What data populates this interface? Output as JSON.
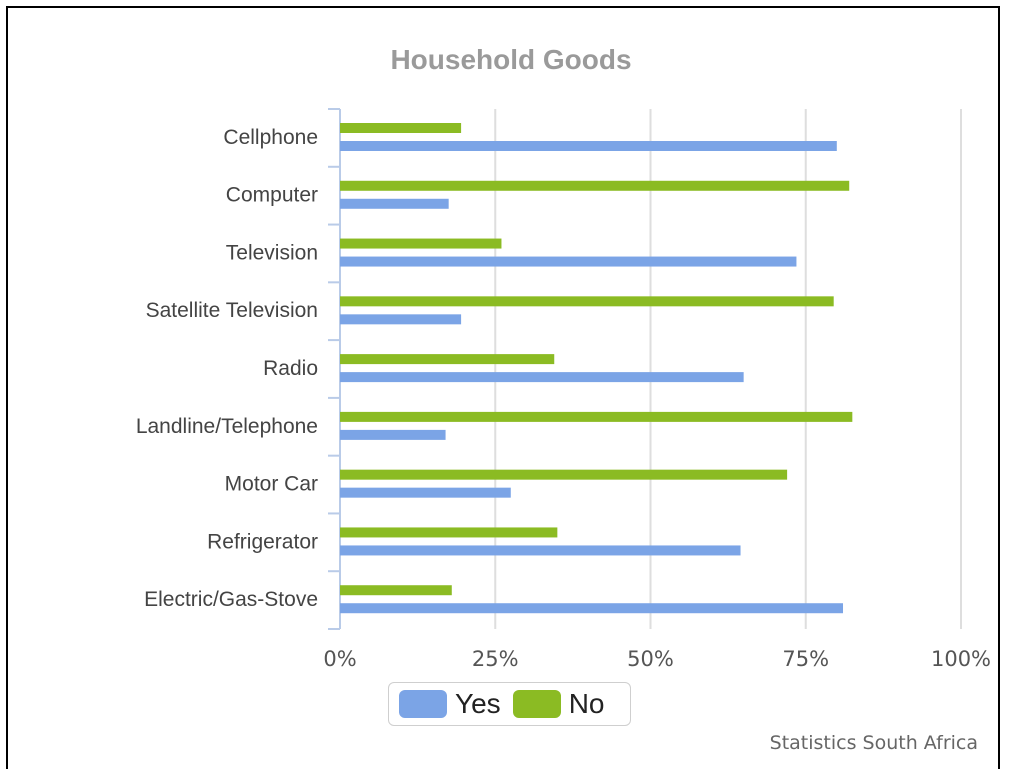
{
  "chart_data": {
    "type": "bar",
    "orientation": "horizontal",
    "title": "Household Goods",
    "categories": [
      "Cellphone",
      "Computer",
      "Television",
      "Satellite Television",
      "Radio",
      "Landline/Telephone",
      "Motor Car",
      "Refrigerator",
      "Electric/Gas-Stove"
    ],
    "series": [
      {
        "name": "Yes",
        "color": "#7ba4e6",
        "values": [
          80,
          17.5,
          73.5,
          19.5,
          65,
          17,
          27.5,
          64.5,
          81
        ]
      },
      {
        "name": "No",
        "color": "#8bbb23",
        "values": [
          19.5,
          82,
          26,
          79.5,
          34.5,
          82.5,
          72,
          35,
          18
        ]
      }
    ],
    "xlim": [
      0,
      100
    ],
    "x_ticks": [
      "0%",
      "25%",
      "50%",
      "75%",
      "100%"
    ],
    "grid": true,
    "legend_position": "bottom"
  },
  "credit": "Statistics South Africa"
}
